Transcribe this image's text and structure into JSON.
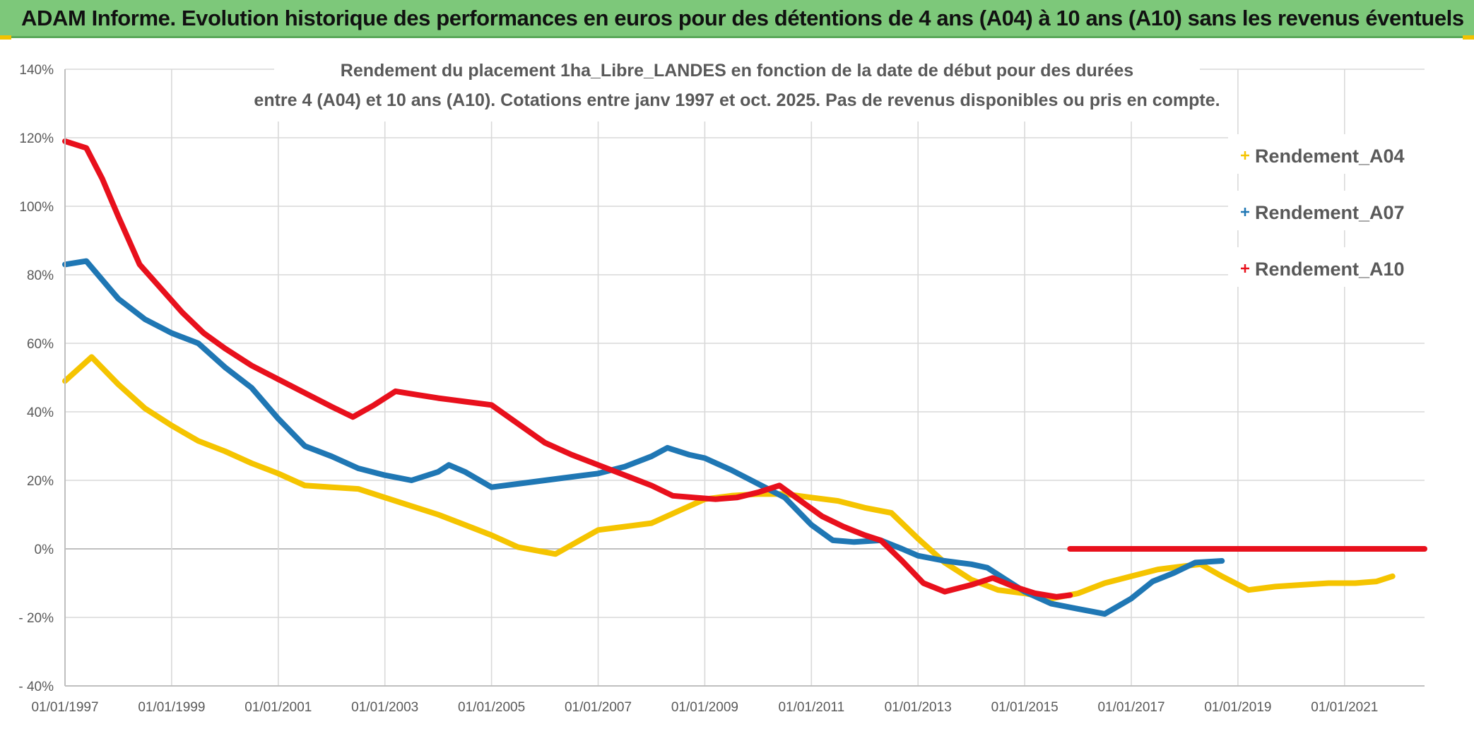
{
  "header": {
    "title": "ADAM Informe. Evolution historique des performances en euros pour des détentions de 4 ans (A04) à 10 ans (A10) sans les revenus éventuels"
  },
  "chart_data": {
    "type": "line",
    "title_lines": [
      "Rendement du placement 1ha_Libre_LANDES en fonction de la date de début pour des durées",
      "entre 4 (A04) et 10 ans (A10). Cotations entre janv 1997 et oct. 2025. Pas de revenus disponibles ou pris en compte."
    ],
    "xlabel": "",
    "ylabel": "",
    "x_range": [
      1997.0,
      2022.5
    ],
    "ylim": [
      -40,
      140
    ],
    "y_ticks": [
      {
        "value": 140,
        "label": "140%"
      },
      {
        "value": 120,
        "label": "120%"
      },
      {
        "value": 100,
        "label": "100%"
      },
      {
        "value": 80,
        "label": "80%"
      },
      {
        "value": 60,
        "label": "60%"
      },
      {
        "value": 40,
        "label": "40%"
      },
      {
        "value": 20,
        "label": "20%"
      },
      {
        "value": 0,
        "label": "0%"
      },
      {
        "value": -20,
        "label": "- 20%"
      },
      {
        "value": -40,
        "label": "- 40%"
      }
    ],
    "x_ticks": [
      {
        "value": 1997,
        "label": "01/01/1997"
      },
      {
        "value": 1999,
        "label": "01/01/1999"
      },
      {
        "value": 2001,
        "label": "01/01/2001"
      },
      {
        "value": 2003,
        "label": "01/01/2003"
      },
      {
        "value": 2005,
        "label": "01/01/2005"
      },
      {
        "value": 2007,
        "label": "01/01/2007"
      },
      {
        "value": 2009,
        "label": "01/01/2009"
      },
      {
        "value": 2011,
        "label": "01/01/2011"
      },
      {
        "value": 2013,
        "label": "01/01/2013"
      },
      {
        "value": 2015,
        "label": "01/01/2015"
      },
      {
        "value": 2017,
        "label": "01/01/2017"
      },
      {
        "value": 2019,
        "label": "01/01/2019"
      },
      {
        "value": 2021,
        "label": "01/01/2021"
      }
    ],
    "legend_position": "top-right",
    "series": [
      {
        "name": "Rendement_A04",
        "color": "#f5c400",
        "points": [
          [
            1997.0,
            49
          ],
          [
            1997.5,
            56
          ],
          [
            1998.0,
            48
          ],
          [
            1998.5,
            41
          ],
          [
            1999.0,
            36
          ],
          [
            1999.5,
            31.5
          ],
          [
            2000.0,
            28.5
          ],
          [
            2000.5,
            25
          ],
          [
            2001.0,
            22
          ],
          [
            2001.5,
            18.5
          ],
          [
            2002.0,
            18
          ],
          [
            2002.5,
            17.5
          ],
          [
            2003.0,
            15
          ],
          [
            2003.5,
            12.5
          ],
          [
            2004.0,
            10
          ],
          [
            2004.5,
            7
          ],
          [
            2005.0,
            4
          ],
          [
            2005.5,
            0.5
          ],
          [
            2006.2,
            -1.5
          ],
          [
            2006.6,
            2
          ],
          [
            2007.0,
            5.5
          ],
          [
            2007.5,
            6.5
          ],
          [
            2008.0,
            7.5
          ],
          [
            2008.5,
            11
          ],
          [
            2009.0,
            14.5
          ],
          [
            2009.5,
            15.5
          ],
          [
            2010.0,
            16
          ],
          [
            2010.5,
            16
          ],
          [
            2011.0,
            15
          ],
          [
            2011.5,
            14
          ],
          [
            2012.0,
            12
          ],
          [
            2012.5,
            10.5
          ],
          [
            2013.0,
            3
          ],
          [
            2013.5,
            -4
          ],
          [
            2014.0,
            -9
          ],
          [
            2014.5,
            -12
          ],
          [
            2015.0,
            -13
          ],
          [
            2015.5,
            -14.5
          ],
          [
            2016.0,
            -13
          ],
          [
            2016.5,
            -10
          ],
          [
            2017.0,
            -8
          ],
          [
            2017.5,
            -6
          ],
          [
            2018.0,
            -5
          ],
          [
            2018.3,
            -4.5
          ],
          [
            2018.7,
            -8
          ],
          [
            2019.2,
            -12
          ],
          [
            2019.7,
            -11
          ],
          [
            2020.2,
            -10.5
          ],
          [
            2020.7,
            -10
          ],
          [
            2021.2,
            -10
          ],
          [
            2021.6,
            -9.5
          ],
          [
            2021.9,
            -8
          ]
        ]
      },
      {
        "name": "Rendement_A07",
        "color": "#1f77b4",
        "points": [
          [
            1997.0,
            83
          ],
          [
            1997.4,
            84
          ],
          [
            1998.0,
            73
          ],
          [
            1998.5,
            67
          ],
          [
            1999.0,
            63
          ],
          [
            1999.5,
            60
          ],
          [
            2000.0,
            53
          ],
          [
            2000.5,
            47
          ],
          [
            2001.0,
            38
          ],
          [
            2001.5,
            30
          ],
          [
            2002.0,
            27
          ],
          [
            2002.5,
            23.5
          ],
          [
            2003.0,
            21.5
          ],
          [
            2003.5,
            20
          ],
          [
            2004.0,
            22.5
          ],
          [
            2004.2,
            24.5
          ],
          [
            2004.5,
            22.5
          ],
          [
            2005.0,
            18
          ],
          [
            2005.5,
            19
          ],
          [
            2006.0,
            20
          ],
          [
            2006.5,
            21
          ],
          [
            2007.0,
            22
          ],
          [
            2007.5,
            24
          ],
          [
            2008.0,
            27
          ],
          [
            2008.3,
            29.5
          ],
          [
            2008.7,
            27.5
          ],
          [
            2009.0,
            26.5
          ],
          [
            2009.5,
            23
          ],
          [
            2010.0,
            19
          ],
          [
            2010.5,
            15
          ],
          [
            2011.0,
            7
          ],
          [
            2011.4,
            2.5
          ],
          [
            2011.8,
            2
          ],
          [
            2012.3,
            2.5
          ],
          [
            2012.7,
            0
          ],
          [
            2013.0,
            -2
          ],
          [
            2013.5,
            -3.5
          ],
          [
            2014.0,
            -4.5
          ],
          [
            2014.3,
            -5.5
          ],
          [
            2014.7,
            -9.5
          ],
          [
            2015.0,
            -12.5
          ],
          [
            2015.5,
            -16
          ],
          [
            2016.0,
            -17.5
          ],
          [
            2016.5,
            -19
          ],
          [
            2017.0,
            -14.5
          ],
          [
            2017.4,
            -9.5
          ],
          [
            2017.8,
            -7
          ],
          [
            2018.2,
            -4
          ],
          [
            2018.7,
            -3.5
          ]
        ]
      },
      {
        "name": "Rendement_A10",
        "color": "#e8101c",
        "points": [
          [
            1997.0,
            119
          ],
          [
            1997.4,
            117
          ],
          [
            1997.7,
            108
          ],
          [
            1998.0,
            97
          ],
          [
            1998.4,
            83
          ],
          [
            1998.8,
            76
          ],
          [
            1999.2,
            69
          ],
          [
            1999.6,
            63
          ],
          [
            2000.0,
            58.5
          ],
          [
            2000.5,
            53.5
          ],
          [
            2001.0,
            49.5
          ],
          [
            2001.5,
            45.5
          ],
          [
            2002.0,
            41.5
          ],
          [
            2002.4,
            38.5
          ],
          [
            2002.8,
            42
          ],
          [
            2003.2,
            46
          ],
          [
            2003.6,
            45
          ],
          [
            2004.0,
            44
          ],
          [
            2004.5,
            43
          ],
          [
            2005.0,
            42
          ],
          [
            2005.5,
            36.5
          ],
          [
            2006.0,
            31
          ],
          [
            2006.5,
            27.5
          ],
          [
            2007.0,
            24.5
          ],
          [
            2007.5,
            21.5
          ],
          [
            2008.0,
            18.5
          ],
          [
            2008.4,
            15.5
          ],
          [
            2008.8,
            15
          ],
          [
            2009.2,
            14.5
          ],
          [
            2009.6,
            15
          ],
          [
            2010.0,
            16.5
          ],
          [
            2010.4,
            18.5
          ],
          [
            2010.8,
            14
          ],
          [
            2011.2,
            9.5
          ],
          [
            2011.6,
            6.5
          ],
          [
            2012.0,
            4
          ],
          [
            2012.3,
            2.5
          ],
          [
            2012.7,
            -3.5
          ],
          [
            2013.1,
            -10
          ],
          [
            2013.5,
            -12.5
          ],
          [
            2014.0,
            -10.5
          ],
          [
            2014.4,
            -8.5
          ],
          [
            2014.8,
            -11
          ],
          [
            2015.2,
            -13
          ],
          [
            2015.6,
            -14
          ],
          [
            2015.85,
            -13.5
          ]
        ]
      },
      {
        "name": "Rendement_A10",
        "color": "#e8101c",
        "points": [
          [
            2015.85,
            0
          ],
          [
            2022.5,
            0
          ]
        ]
      }
    ]
  }
}
